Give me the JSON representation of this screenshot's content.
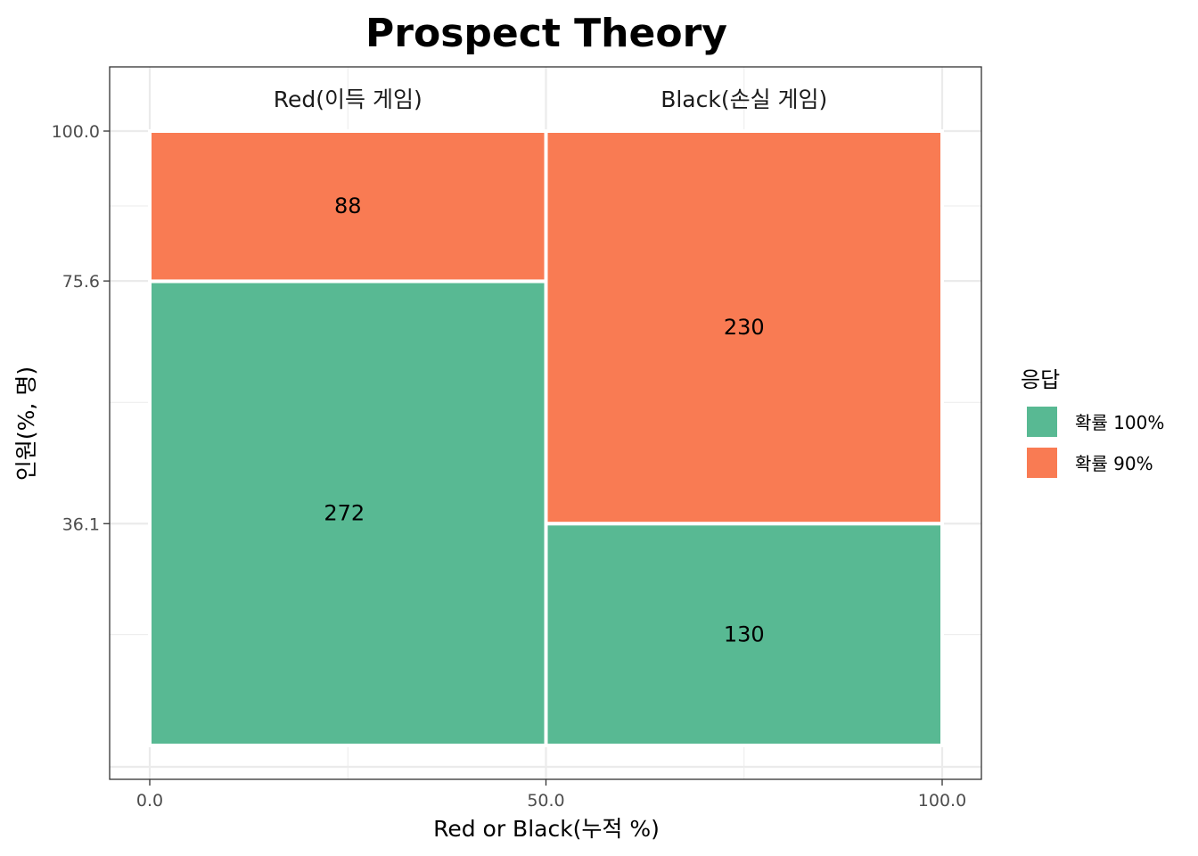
{
  "chart_data": {
    "type": "mosaic",
    "title": "Prospect Theory",
    "xlabel": "Red or Black(누적 %)",
    "ylabel": "인원(%, 명)",
    "xlim": [
      0,
      100
    ],
    "ylim": [
      0,
      100
    ],
    "x_ticks": [
      "0.0",
      "50.0",
      "100.0"
    ],
    "y_ticks": [
      {
        "value": 36.1,
        "label": "36.1"
      },
      {
        "value": 75.6,
        "label": "75.6"
      },
      {
        "value": 100,
        "label": "100.0"
      }
    ],
    "facets": [
      "Red(이득 게임)",
      "Black(손실 게임)"
    ],
    "columns": [
      {
        "name": "Red(이득 게임)",
        "x_start": 0,
        "x_end": 50,
        "segments": [
          {
            "series": "확률 100%",
            "count": 272
          },
          {
            "series": "확률 90%",
            "count": 88
          }
        ]
      },
      {
        "name": "Black(손실 게임)",
        "x_start": 50,
        "x_end": 100,
        "segments": [
          {
            "series": "확률 100%",
            "count": 130
          },
          {
            "series": "확률 90%",
            "count": 230
          }
        ]
      }
    ],
    "legend": {
      "title": "응답",
      "position": "right",
      "items": [
        {
          "name": "확률 100%",
          "color": "#58b993"
        },
        {
          "name": "확률 90%",
          "color": "#f97b53"
        }
      ]
    },
    "grid": true
  }
}
